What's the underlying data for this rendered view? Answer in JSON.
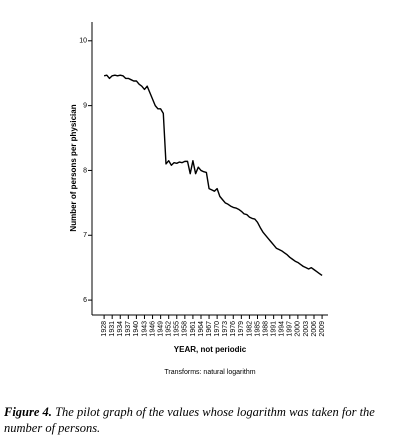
{
  "chart_data": {
    "type": "line",
    "y_label": "Number of persons per physician",
    "x_label": "YEAR, not periodic",
    "note": "Transforms: natural logarithm",
    "color": "#000000",
    "x": [
      1928,
      1929,
      1930,
      1931,
      1932,
      1933,
      1934,
      1935,
      1936,
      1937,
      1938,
      1939,
      1940,
      1941,
      1942,
      1943,
      1944,
      1945,
      1946,
      1947,
      1948,
      1949,
      1950,
      1951,
      1952,
      1953,
      1954,
      1955,
      1956,
      1957,
      1958,
      1959,
      1960,
      1961,
      1962,
      1963,
      1964,
      1965,
      1966,
      1967,
      1968,
      1969,
      1970,
      1971,
      1972,
      1973,
      1974,
      1975,
      1976,
      1977,
      1978,
      1979,
      1980,
      1981,
      1982,
      1983,
      1984,
      1985,
      1986,
      1987,
      1988,
      1989,
      1990,
      1991,
      1992,
      1993,
      1994,
      1995,
      1996,
      1997,
      1998,
      1999,
      2000,
      2001,
      2002,
      2003,
      2004,
      2005,
      2006,
      2007,
      2008,
      2009
    ],
    "values": [
      9.46,
      9.47,
      9.42,
      9.46,
      9.47,
      9.46,
      9.47,
      9.46,
      9.42,
      9.42,
      9.4,
      9.38,
      9.38,
      9.33,
      9.3,
      9.25,
      9.3,
      9.2,
      9.1,
      9.0,
      8.95,
      8.95,
      8.88,
      8.1,
      8.15,
      8.08,
      8.12,
      8.11,
      8.13,
      8.12,
      8.14,
      8.14,
      7.95,
      8.15,
      7.95,
      8.05,
      8.0,
      7.98,
      7.97,
      7.72,
      7.7,
      7.68,
      7.72,
      7.6,
      7.55,
      7.5,
      7.48,
      7.45,
      7.43,
      7.42,
      7.4,
      7.37,
      7.33,
      7.32,
      7.28,
      7.26,
      7.25,
      7.2,
      7.12,
      7.05,
      7.0,
      6.95,
      6.9,
      6.85,
      6.8,
      6.78,
      6.76,
      6.73,
      6.7,
      6.66,
      6.63,
      6.6,
      6.58,
      6.55,
      6.52,
      6.5,
      6.48,
      6.5,
      6.47,
      6.44,
      6.41,
      6.38
    ],
    "xlim": [
      1923.5,
      2011.2
    ],
    "xticks": [
      1928,
      1931,
      1934,
      1937,
      1940,
      1943,
      1946,
      1949,
      1952,
      1955,
      1958,
      1961,
      1964,
      1967,
      1970,
      1973,
      1976,
      1979,
      1982,
      1985,
      1988,
      1991,
      1994,
      1997,
      2000,
      2003,
      2006,
      2009
    ],
    "ylim": [
      5.77,
      10.29
    ],
    "yticks": [
      6,
      7,
      8,
      9,
      10
    ]
  },
  "caption": {
    "label": "Figure 4.",
    "text": "The pilot graph of the values whose logarithm was taken for the number of persons."
  }
}
